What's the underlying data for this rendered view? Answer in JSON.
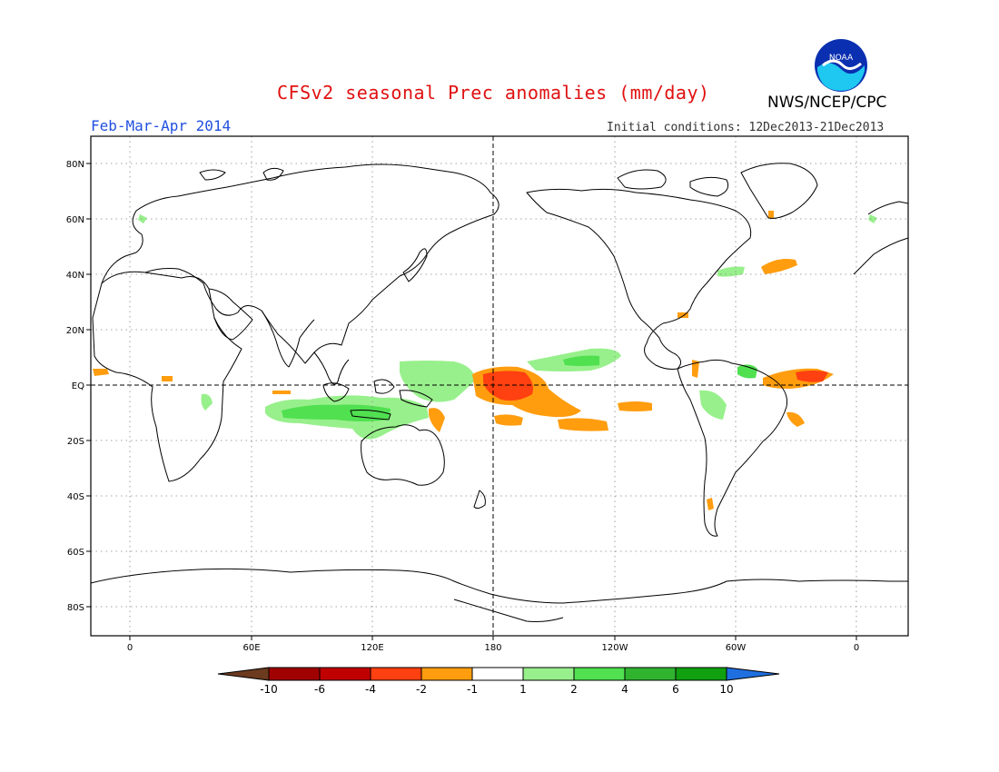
{
  "header": {
    "title": "CFSv2 seasonal Prec anomalies (mm/day)",
    "period": "Feb-Mar-Apr 2014",
    "initial_conditions": "Initial conditions: 12Dec2013-21Dec2013",
    "agency": "NWS/NCEP/CPC",
    "logo_text": "NOAA"
  },
  "map": {
    "lat_labels": [
      "80N",
      "60N",
      "40N",
      "20N",
      "EQ",
      "20S",
      "40S",
      "60S",
      "80S"
    ],
    "lon_labels": [
      "0",
      "60E",
      "120E",
      "180",
      "120W",
      "60W",
      "0"
    ]
  },
  "legend": {
    "labels": [
      "-10",
      "-6",
      "-4",
      "-2",
      "-1",
      "1",
      "2",
      "4",
      "6",
      "10"
    ],
    "colors": [
      "#6b3a1f",
      "#a00000",
      "#c00000",
      "#ff4010",
      "#ff9d0f",
      "#ffffff",
      "#98f08c",
      "#50e050",
      "#30b430",
      "#10a010",
      "#1f6fe0"
    ]
  },
  "anomalies": {
    "wet_color": "#7fe67f",
    "dry_color": "#ff9d0f",
    "strong_dry_color": "#ff4010"
  }
}
